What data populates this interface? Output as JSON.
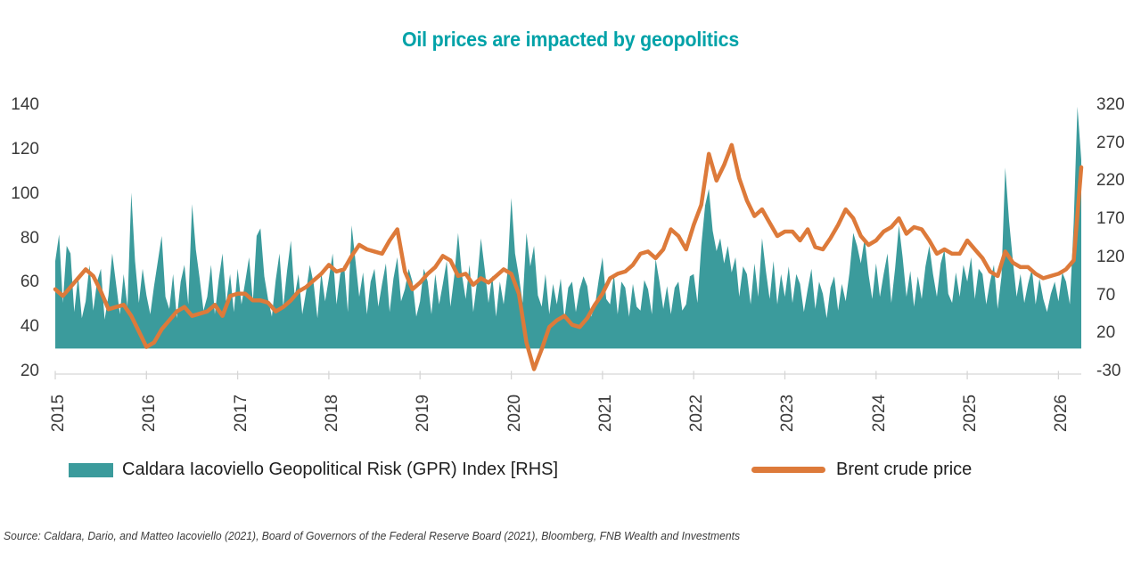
{
  "title": "Oil prices are impacted by geopolitics",
  "legend": [
    {
      "label": "Caldara Iacoviello Geopolitical Risk (GPR) Index [RHS]",
      "color": "#3b9b9c",
      "swatch": "area"
    },
    {
      "label": "Brent crude price",
      "color": "#dd7a3a",
      "swatch": "line"
    }
  ],
  "source_note": "Source: Caldara, Dario, and Matteo Iacoviello (2021), Board of Governors of the Federal Reserve Board (2021), Bloomberg, FNB Wealth and Investments",
  "colors": {
    "area": "#3b9b9c",
    "line": "#dd7a3a",
    "axis": "#d6d6d6",
    "tick_text": "#3a3a3a",
    "title": "#00a2a8"
  },
  "chart_data": {
    "type": "area+line",
    "x_axis": {
      "tick_labels": [
        "2015",
        "2016",
        "2017",
        "2018",
        "2019",
        "2020",
        "2021",
        "2022",
        "2023",
        "2024",
        "2025",
        "2026"
      ],
      "years_span": 11.25
    },
    "left_axis": {
      "ticks": [
        140,
        120,
        100,
        80,
        60,
        40,
        20
      ],
      "min": 20,
      "max": 140
    },
    "right_axis": {
      "ticks": [
        320,
        270,
        220,
        170,
        120,
        70,
        20,
        -30
      ],
      "min": -30,
      "max": 320,
      "area_baseline": 0
    },
    "series": [
      {
        "name": "Caldara Iacoviello Geopolitical Risk (GPR) Index",
        "axis": "right",
        "type": "area",
        "color": "#3b9b9c",
        "start": "2015-01",
        "points_per_year": 24,
        "values": [
          115,
          150,
          60,
          135,
          125,
          48,
          95,
          40,
          62,
          110,
          50,
          88,
          105,
          38,
          70,
          125,
          85,
          45,
          98,
          55,
          205,
          115,
          60,
          105,
          70,
          45,
          82,
          115,
          148,
          68,
          52,
          98,
          40,
          88,
          110,
          58,
          190,
          130,
          92,
          50,
          68,
          110,
          45,
          90,
          125,
          60,
          98,
          48,
          105,
          58,
          88,
          120,
          62,
          148,
          158,
          95,
          65,
          42,
          90,
          125,
          55,
          102,
          142,
          68,
          98,
          45,
          75,
          110,
          85,
          40,
          100,
          62,
          92,
          125,
          58,
          98,
          110,
          48,
          162,
          115,
          68,
          100,
          45,
          88,
          105,
          55,
          85,
          112,
          48,
          92,
          120,
          62,
          78,
          105,
          88,
          42,
          62,
          105,
          88,
          45,
          98,
          58,
          85,
          115,
          55,
          95,
          152,
          98,
          65,
          110,
          48,
          88,
          145,
          105,
          60,
          96,
          42,
          88,
          58,
          100,
          198,
          125,
          95,
          60,
          152,
          108,
          135,
          70,
          55,
          98,
          45,
          85,
          58,
          92,
          40,
          80,
          88,
          48,
          78,
          95,
          82,
          42,
          55,
          90,
          120,
          65,
          58,
          98,
          45,
          88,
          80,
          42,
          85,
          55,
          50,
          90,
          78,
          45,
          118,
          88,
          52,
          82,
          45,
          80,
          88,
          50,
          58,
          95,
          98,
          60,
          135,
          188,
          210,
          155,
          128,
          145,
          112,
          135,
          100,
          120,
          68,
          108,
          98,
          58,
          112,
          68,
          145,
          102,
          65,
          115,
          58,
          98,
          68,
          108,
          60,
          98,
          85,
          48,
          78,
          105,
          52,
          88,
          72,
          40,
          80,
          95,
          50,
          85,
          62,
          100,
          152,
          135,
          112,
          145,
          98,
          65,
          112,
          68,
          98,
          125,
          60,
          105,
          162,
          120,
          68,
          102,
          55,
          95,
          65,
          108,
          135,
          98,
          68,
          112,
          130,
          72,
          60,
          100,
          68,
          110,
          88,
          120,
          65,
          105,
          98,
          58,
          88,
          110,
          52,
          95,
          238,
          168,
          115,
          68,
          98,
          60,
          85,
          105,
          58,
          92,
          65,
          48,
          72,
          88,
          62,
          100,
          88,
          58,
          165,
          318,
          248
        ]
      },
      {
        "name": "Brent crude price",
        "axis": "left",
        "type": "line",
        "color": "#dd7a3a",
        "start": "2015-01",
        "points_per_year": 12,
        "values": [
          57,
          54,
          58,
          62,
          66,
          63,
          56,
          48,
          49,
          50,
          45,
          38,
          31,
          33,
          39,
          43,
          47,
          49,
          45,
          46,
          47,
          50,
          45,
          54,
          55,
          55,
          52,
          52,
          51,
          47,
          49,
          52,
          56,
          58,
          61,
          64,
          68,
          65,
          66,
          72,
          77,
          75,
          74,
          73,
          79,
          84,
          65,
          57,
          60,
          64,
          67,
          72,
          70,
          63,
          64,
          59,
          62,
          60,
          63,
          66,
          64,
          55,
          33,
          21,
          30,
          40,
          43,
          45,
          41,
          40,
          44,
          50,
          55,
          62,
          64,
          65,
          68,
          73,
          74,
          71,
          75,
          84,
          81,
          75,
          86,
          95,
          118,
          106,
          113,
          122,
          107,
          97,
          90,
          93,
          87,
          81,
          83,
          83,
          79,
          84,
          76,
          75,
          80,
          86,
          93,
          89,
          81,
          77,
          79,
          83,
          85,
          89,
          82,
          85,
          84,
          79,
          73,
          75,
          73,
          73,
          79,
          75,
          71,
          65,
          63,
          74,
          69,
          67,
          67,
          64,
          62,
          63,
          64,
          66,
          70,
          112
        ]
      }
    ]
  }
}
